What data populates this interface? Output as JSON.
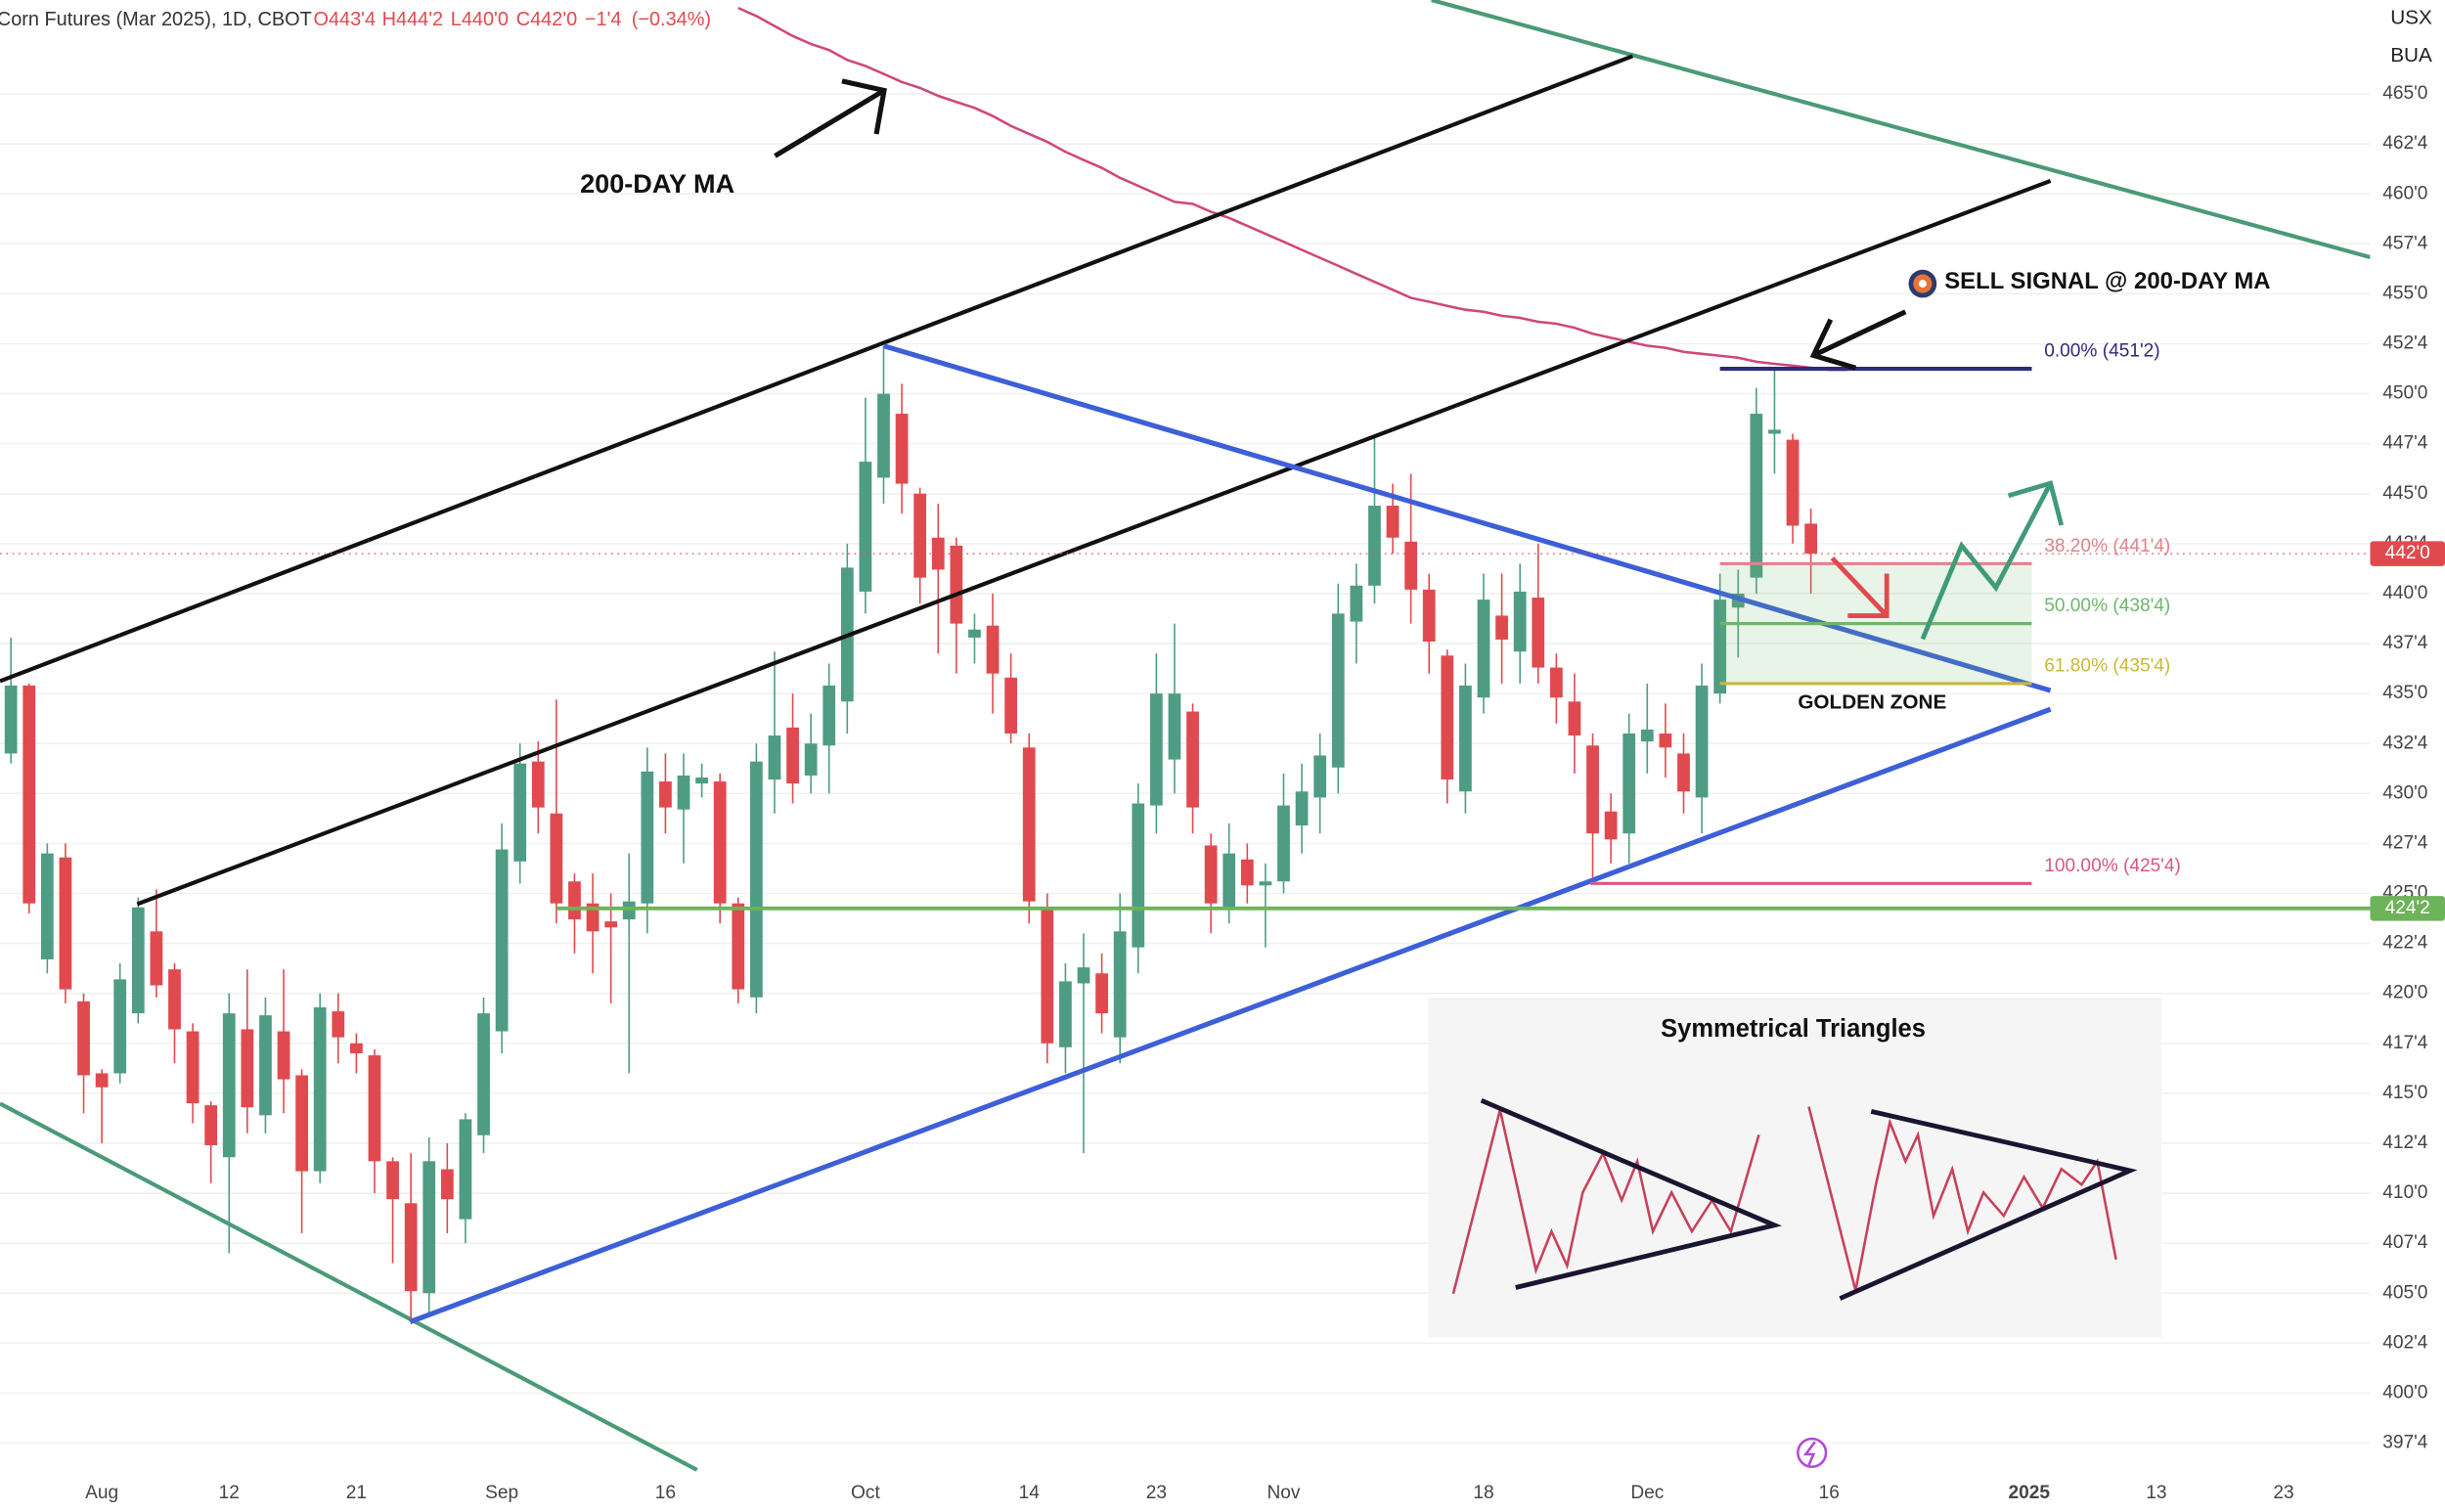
{
  "chart_data": {
    "type": "candlestick",
    "title": "Corn Futures (Mar 2025), 1D, CBOT",
    "header_values": [
      {
        "value": 443.5,
        "label": "O443'4"
      },
      {
        "value": 444.25,
        "label": "H444'2"
      },
      {
        "value": 440,
        "label": "L440'0"
      },
      {
        "value": 442,
        "label": "C442'0"
      },
      {
        "value": -1.5,
        "label": "−1'4"
      },
      {
        "value": -0.34,
        "label": "(−0.34%)"
      }
    ],
    "currency_labels": [
      "USX",
      "BUA"
    ],
    "categories": [
      null,
      null,
      null,
      null,
      null,
      "Aug",
      null,
      null,
      null,
      null,
      null,
      null,
      "12",
      null,
      null,
      null,
      null,
      null,
      null,
      "21",
      null,
      null,
      null,
      null,
      null,
      null,
      null,
      "Sep",
      null,
      null,
      null,
      null,
      null,
      null,
      null,
      null,
      "16",
      null,
      null,
      null,
      null,
      null,
      null,
      null,
      null,
      null,
      null,
      "Oct",
      null,
      null,
      null,
      null,
      null,
      null,
      null,
      null,
      "14",
      null,
      null,
      null,
      null,
      null,
      null,
      "23",
      null,
      null,
      null,
      null,
      null,
      null,
      "Nov",
      null,
      null,
      null,
      null,
      null,
      null,
      null,
      null,
      null,
      null,
      "18",
      null,
      null,
      null,
      null,
      null,
      null,
      null,
      null,
      "Dec",
      null,
      null,
      null,
      null,
      null,
      null,
      null,
      null,
      null,
      "16",
      null,
      null,
      null,
      null,
      null,
      null,
      null,
      null,
      null,
      null,
      "2025",
      null,
      null,
      null,
      null,
      null,
      null,
      "13",
      null,
      null,
      null,
      null,
      null,
      null,
      "23",
      null,
      null,
      null,
      null
    ],
    "open": [
      432.0,
      435.4,
      421.7,
      426.8,
      419.6,
      416.0,
      416.0,
      419.0,
      423.1,
      421.2,
      418.1,
      414.4,
      411.8,
      418.2,
      413.9,
      418.1,
      415.9,
      411.1,
      419.1,
      417.5,
      416.9,
      411.6,
      409.5,
      405.0,
      411.2,
      408.7,
      412.9,
      418.1,
      426.6,
      431.6,
      429.0,
      425.6,
      424.5,
      423.6,
      423.7,
      424.5,
      430.6,
      429.2,
      430.5,
      430.6,
      424.5,
      419.8,
      430.7,
      433.3,
      430.9,
      432.4,
      434.6,
      440.1,
      445.8,
      449.0,
      445.0,
      442.8,
      442.4,
      437.8,
      438.4,
      435.8,
      432.3,
      424.2,
      417.3,
      420.5,
      421.0,
      417.8,
      422.3,
      429.4,
      431.7,
      434.1,
      427.4,
      424.3,
      426.7,
      425.4,
      425.6,
      428.4,
      429.8,
      431.3,
      438.6,
      440.4,
      444.4,
      442.6,
      440.2,
      436.9,
      430.1,
      434.8,
      438.9,
      437.1,
      439.8,
      436.3,
      434.6,
      432.4,
      429.1,
      428.0,
      432.6,
      433.0,
      432.0,
      429.8,
      435.0,
      439.3,
      440.8,
      448.0,
      447.7,
      443.5,
      null,
      null,
      null,
      null,
      null,
      null,
      null,
      null,
      null,
      null,
      null,
      null,
      null,
      null,
      null,
      null,
      null,
      null,
      null,
      null,
      null,
      null,
      null,
      null,
      null,
      null,
      null,
      null,
      null,
      null
    ],
    "high": [
      437.8,
      435.5,
      427.5,
      427.5,
      420.0,
      416.2,
      421.5,
      424.8,
      425.2,
      421.5,
      418.5,
      414.6,
      420.0,
      421.2,
      419.8,
      421.2,
      416.2,
      420.0,
      420.0,
      418.0,
      417.2,
      411.8,
      412.0,
      412.8,
      412.5,
      414.0,
      419.8,
      428.5,
      432.5,
      432.6,
      434.7,
      426.0,
      426.0,
      425.0,
      427.0,
      432.3,
      432.0,
      432.0,
      431.5,
      431.0,
      424.8,
      432.5,
      437.1,
      435.0,
      434.0,
      436.5,
      442.5,
      449.8,
      452.4,
      450.5,
      445.3,
      444.5,
      442.8,
      439.0,
      440.0,
      437.0,
      433.0,
      425.0,
      421.5,
      423.0,
      422.0,
      425.0,
      430.5,
      437.0,
      438.5,
      434.5,
      428.0,
      428.5,
      427.5,
      426.5,
      431.0,
      431.5,
      433.0,
      440.5,
      441.5,
      447.8,
      445.5,
      446.0,
      441.0,
      437.2,
      436.5,
      441.0,
      441.0,
      441.5,
      442.5,
      437.0,
      436.0,
      433.0,
      430.0,
      434.0,
      435.5,
      434.5,
      433.0,
      436.5,
      441.0,
      441.2,
      450.3,
      451.2,
      448.0,
      444.25,
      null,
      null,
      null,
      null,
      null,
      null,
      null,
      null,
      null,
      null,
      null,
      null,
      null,
      null,
      null,
      null,
      null,
      null,
      null,
      null,
      null,
      null,
      null,
      null,
      null,
      null,
      null,
      null,
      null,
      null
    ],
    "low": [
      431.5,
      424.0,
      421.0,
      419.5,
      414.0,
      412.5,
      415.5,
      418.5,
      419.8,
      416.5,
      413.5,
      410.5,
      407.0,
      413.0,
      413.0,
      414.0,
      408.0,
      410.5,
      416.5,
      416.0,
      410.0,
      406.5,
      403.6,
      403.8,
      408.0,
      407.5,
      412.0,
      417.0,
      425.5,
      428.0,
      423.5,
      422.0,
      421.0,
      419.5,
      416.0,
      423.0,
      428.0,
      426.5,
      429.8,
      423.5,
      419.5,
      419.0,
      429.0,
      429.5,
      430.0,
      430.0,
      433.0,
      439.0,
      444.5,
      444.0,
      439.5,
      437.0,
      436.0,
      436.5,
      434.0,
      432.5,
      423.5,
      416.5,
      416.0,
      412.0,
      418.0,
      416.5,
      421.0,
      428.0,
      430.0,
      428.0,
      423.0,
      423.5,
      424.5,
      422.3,
      425.0,
      427.0,
      428.0,
      430.0,
      436.5,
      439.5,
      442.0,
      438.5,
      436.0,
      429.5,
      429.0,
      434.0,
      435.5,
      435.5,
      435.5,
      433.5,
      431.0,
      425.8,
      426.5,
      426.5,
      431.0,
      430.8,
      429.0,
      428.0,
      434.5,
      436.8,
      440.0,
      446.0,
      442.5,
      440.0,
      null,
      null,
      null,
      null,
      null,
      null,
      null,
      null,
      null,
      null,
      null,
      null,
      null,
      null,
      null,
      null,
      null,
      null,
      null,
      null,
      null,
      null,
      null,
      null,
      null,
      null,
      null,
      null,
      null,
      null
    ],
    "close": [
      435.4,
      424.5,
      427.0,
      420.2,
      415.9,
      415.3,
      420.7,
      424.3,
      420.4,
      418.2,
      414.5,
      412.4,
      419.0,
      414.3,
      418.9,
      415.7,
      411.1,
      419.3,
      417.8,
      417.0,
      411.6,
      409.7,
      405.1,
      411.6,
      409.7,
      413.7,
      419.0,
      427.2,
      431.5,
      429.3,
      424.5,
      423.7,
      423.1,
      423.3,
      424.6,
      431.1,
      429.3,
      430.9,
      430.8,
      424.5,
      420.2,
      431.6,
      432.9,
      430.5,
      432.5,
      435.4,
      441.3,
      446.6,
      450.0,
      445.5,
      440.8,
      441.2,
      438.5,
      438.2,
      436.0,
      433.0,
      424.6,
      417.5,
      420.6,
      421.3,
      419.0,
      423.1,
      429.5,
      435.0,
      435.0,
      429.3,
      424.5,
      427.0,
      425.4,
      425.6,
      429.4,
      430.1,
      431.9,
      439.0,
      440.4,
      444.4,
      442.8,
      440.2,
      437.6,
      430.7,
      435.4,
      439.7,
      437.7,
      440.1,
      436.3,
      434.8,
      432.9,
      428.0,
      427.7,
      433.0,
      433.2,
      432.3,
      430.1,
      435.4,
      439.7,
      440.0,
      449.0,
      448.2,
      443.4,
      442.0,
      null,
      null,
      null,
      null,
      null,
      null,
      null,
      null,
      null,
      null,
      null,
      null,
      null,
      null,
      null,
      null,
      null,
      null,
      null,
      null,
      null,
      null,
      null,
      null,
      null,
      null,
      null,
      null,
      null,
      null
    ],
    "up_color": "#4f9c84",
    "down_color": "#e04a4f",
    "ma": {
      "color": "#d0477a",
      "values": [
        null,
        null,
        null,
        null,
        null,
        null,
        null,
        null,
        null,
        null,
        null,
        null,
        null,
        null,
        null,
        null,
        null,
        null,
        null,
        null,
        null,
        null,
        null,
        null,
        null,
        null,
        null,
        null,
        null,
        null,
        null,
        null,
        null,
        null,
        null,
        null,
        null,
        null,
        null,
        null,
        469.3,
        468.9,
        468.4,
        467.9,
        467.5,
        467.2,
        466.7,
        466.4,
        466.0,
        465.6,
        465.3,
        464.9,
        464.6,
        464.3,
        463.9,
        463.4,
        463.0,
        462.6,
        462.1,
        461.7,
        461.3,
        460.8,
        460.4,
        460.0,
        459.6,
        459.5,
        459.1,
        458.8,
        458.4,
        458.0,
        457.6,
        457.2,
        456.8,
        456.4,
        456.0,
        455.6,
        455.2,
        454.8,
        454.6,
        454.4,
        454.2,
        454.1,
        453.9,
        453.8,
        453.6,
        453.5,
        453.3,
        453.0,
        452.8,
        452.6,
        452.4,
        452.3,
        452.1,
        452.0,
        451.9,
        451.8,
        451.6,
        451.5,
        451.4,
        451.3,
        451.2,
        451.2,
        null,
        null,
        null,
        null,
        null,
        null,
        null,
        null,
        null,
        null,
        null,
        null,
        null,
        null,
        null,
        null,
        null,
        null,
        null,
        null,
        null,
        null,
        null,
        null,
        null,
        null,
        null,
        null
      ]
    },
    "ylim": [
      396,
      469.7
    ],
    "yticks": [
      {
        "value": 397.5,
        "label": "397'4"
      },
      {
        "value": 400,
        "label": "400'0"
      },
      {
        "value": 402.5,
        "label": "402'4"
      },
      {
        "value": 405,
        "label": "405'0"
      },
      {
        "value": 407.5,
        "label": "407'4"
      },
      {
        "value": 410,
        "label": "410'0"
      },
      {
        "value": 412.5,
        "label": "412'4"
      },
      {
        "value": 415,
        "label": "415'0"
      },
      {
        "value": 417.5,
        "label": "417'4"
      },
      {
        "value": 420,
        "label": "420'0"
      },
      {
        "value": 422.5,
        "label": "422'4"
      },
      {
        "value": 425,
        "label": "425'0"
      },
      {
        "value": 427.5,
        "label": "427'4"
      },
      {
        "value": 430,
        "label": "430'0"
      },
      {
        "value": 432.5,
        "label": "432'4"
      },
      {
        "value": 435,
        "label": "435'0"
      },
      {
        "value": 437.5,
        "label": "437'4"
      },
      {
        "value": 440,
        "label": "440'0"
      },
      {
        "value": 442.5,
        "label": "442'4"
      },
      {
        "value": 445,
        "label": "445'0"
      },
      {
        "value": 447.5,
        "label": "447'4"
      },
      {
        "value": 450,
        "label": "450'0"
      },
      {
        "value": 452.5,
        "label": "452'4"
      },
      {
        "value": 455,
        "label": "455'0"
      },
      {
        "value": 457.5,
        "label": "457'4"
      },
      {
        "value": 460,
        "label": "460'0"
      },
      {
        "value": 462.5,
        "label": "462'4"
      },
      {
        "value": 465,
        "label": "465'0"
      }
    ],
    "grid": true,
    "fib_levels": [
      {
        "value": 451.25,
        "label": "0.00% (451'2)",
        "color": "#2e2a7a"
      },
      {
        "value": 441.5,
        "label": "38.20% (441'4)",
        "color": "#e0828a"
      },
      {
        "value": 438.5,
        "label": "50.00% (438'4)",
        "color": "#6cb86a"
      },
      {
        "value": 435.5,
        "label": "61.80% (435'4)",
        "color": "#c9b83a"
      },
      {
        "value": 425.5,
        "label": "100.00% (425'4)",
        "color": "#d9587e"
      }
    ],
    "zone_color": "#6cb86a",
    "last_price": {
      "value": 442,
      "label": "442'0",
      "color": "#e04a4f"
    },
    "support_level": {
      "value": 424.25,
      "label": "424'2",
      "color": "#6db35a"
    },
    "annotations": {
      "ma_label": "200-DAY MA",
      "sell_signal": "SELL SIGNAL @ 200-DAY MA",
      "golden_zone": "GOLDEN ZONE",
      "inset_title": "Symmetrical Triangles"
    }
  }
}
